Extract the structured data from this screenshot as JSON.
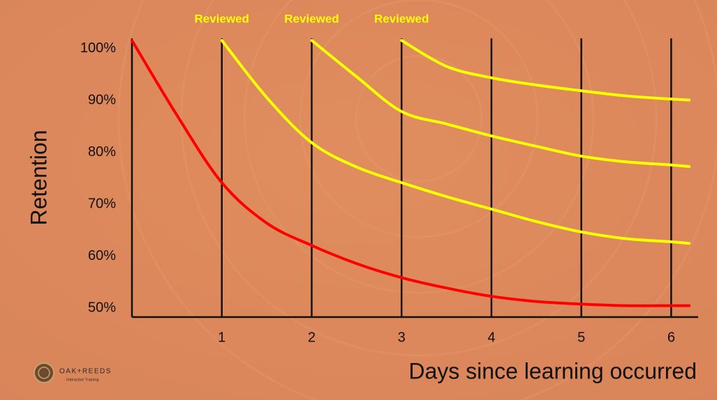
{
  "chart_data": {
    "type": "line",
    "x_label": "Days since learning occurred",
    "y_label": "Retention",
    "x": [
      0,
      0.5,
      1,
      1.5,
      2,
      2.5,
      3,
      3.5,
      4,
      4.5,
      5,
      5.5,
      6,
      6.2
    ],
    "series": [
      {
        "color": "#ff0000",
        "values": [
          101.6,
          87.2,
          74.2,
          66.4,
          62.1,
          58.6,
          55.9,
          53.9,
          52.3,
          51.3,
          50.8,
          50.5,
          50.5,
          50.5
        ]
      },
      {
        "color": "#ffff00",
        "values": [
          null,
          null,
          101.6,
          90.6,
          81.9,
          77.2,
          74.2,
          71.5,
          69.1,
          66.7,
          64.7,
          63.4,
          62.8,
          62.5
        ]
      },
      {
        "color": "#ffff00",
        "values": [
          null,
          null,
          null,
          null,
          101.6,
          94.6,
          87.9,
          85.5,
          83.2,
          81.2,
          79.3,
          78.2,
          77.6,
          77.3
        ]
      },
      {
        "color": "#ffff00",
        "values": [
          null,
          null,
          null,
          null,
          null,
          null,
          101.6,
          96.6,
          94.4,
          93.0,
          91.9,
          90.9,
          90.3,
          90.1
        ]
      }
    ],
    "xlim": [
      0,
      6.3
    ],
    "ylim": [
      48.3,
      102
    ],
    "xticks": [
      1,
      2,
      3,
      4,
      5,
      6
    ],
    "yticks": [
      {
        "value": 50,
        "label": "50%"
      },
      {
        "value": 60,
        "label": "60%"
      },
      {
        "value": 70,
        "label": "70%"
      },
      {
        "value": 80,
        "label": "80%"
      },
      {
        "value": 90,
        "label": "90%"
      },
      {
        "value": 100,
        "label": "100%"
      }
    ],
    "grid": true,
    "annotations": [
      {
        "text": "Reviewed",
        "x": 1,
        "color": "#ffff00"
      },
      {
        "text": "Reviewed",
        "x": 2,
        "color": "#ffff00"
      },
      {
        "text": "Reviewed",
        "x": 3,
        "color": "#ffff00"
      }
    ]
  },
  "branding": {
    "name": "OAK+REEDS",
    "tagline": "Interactive Training"
  }
}
